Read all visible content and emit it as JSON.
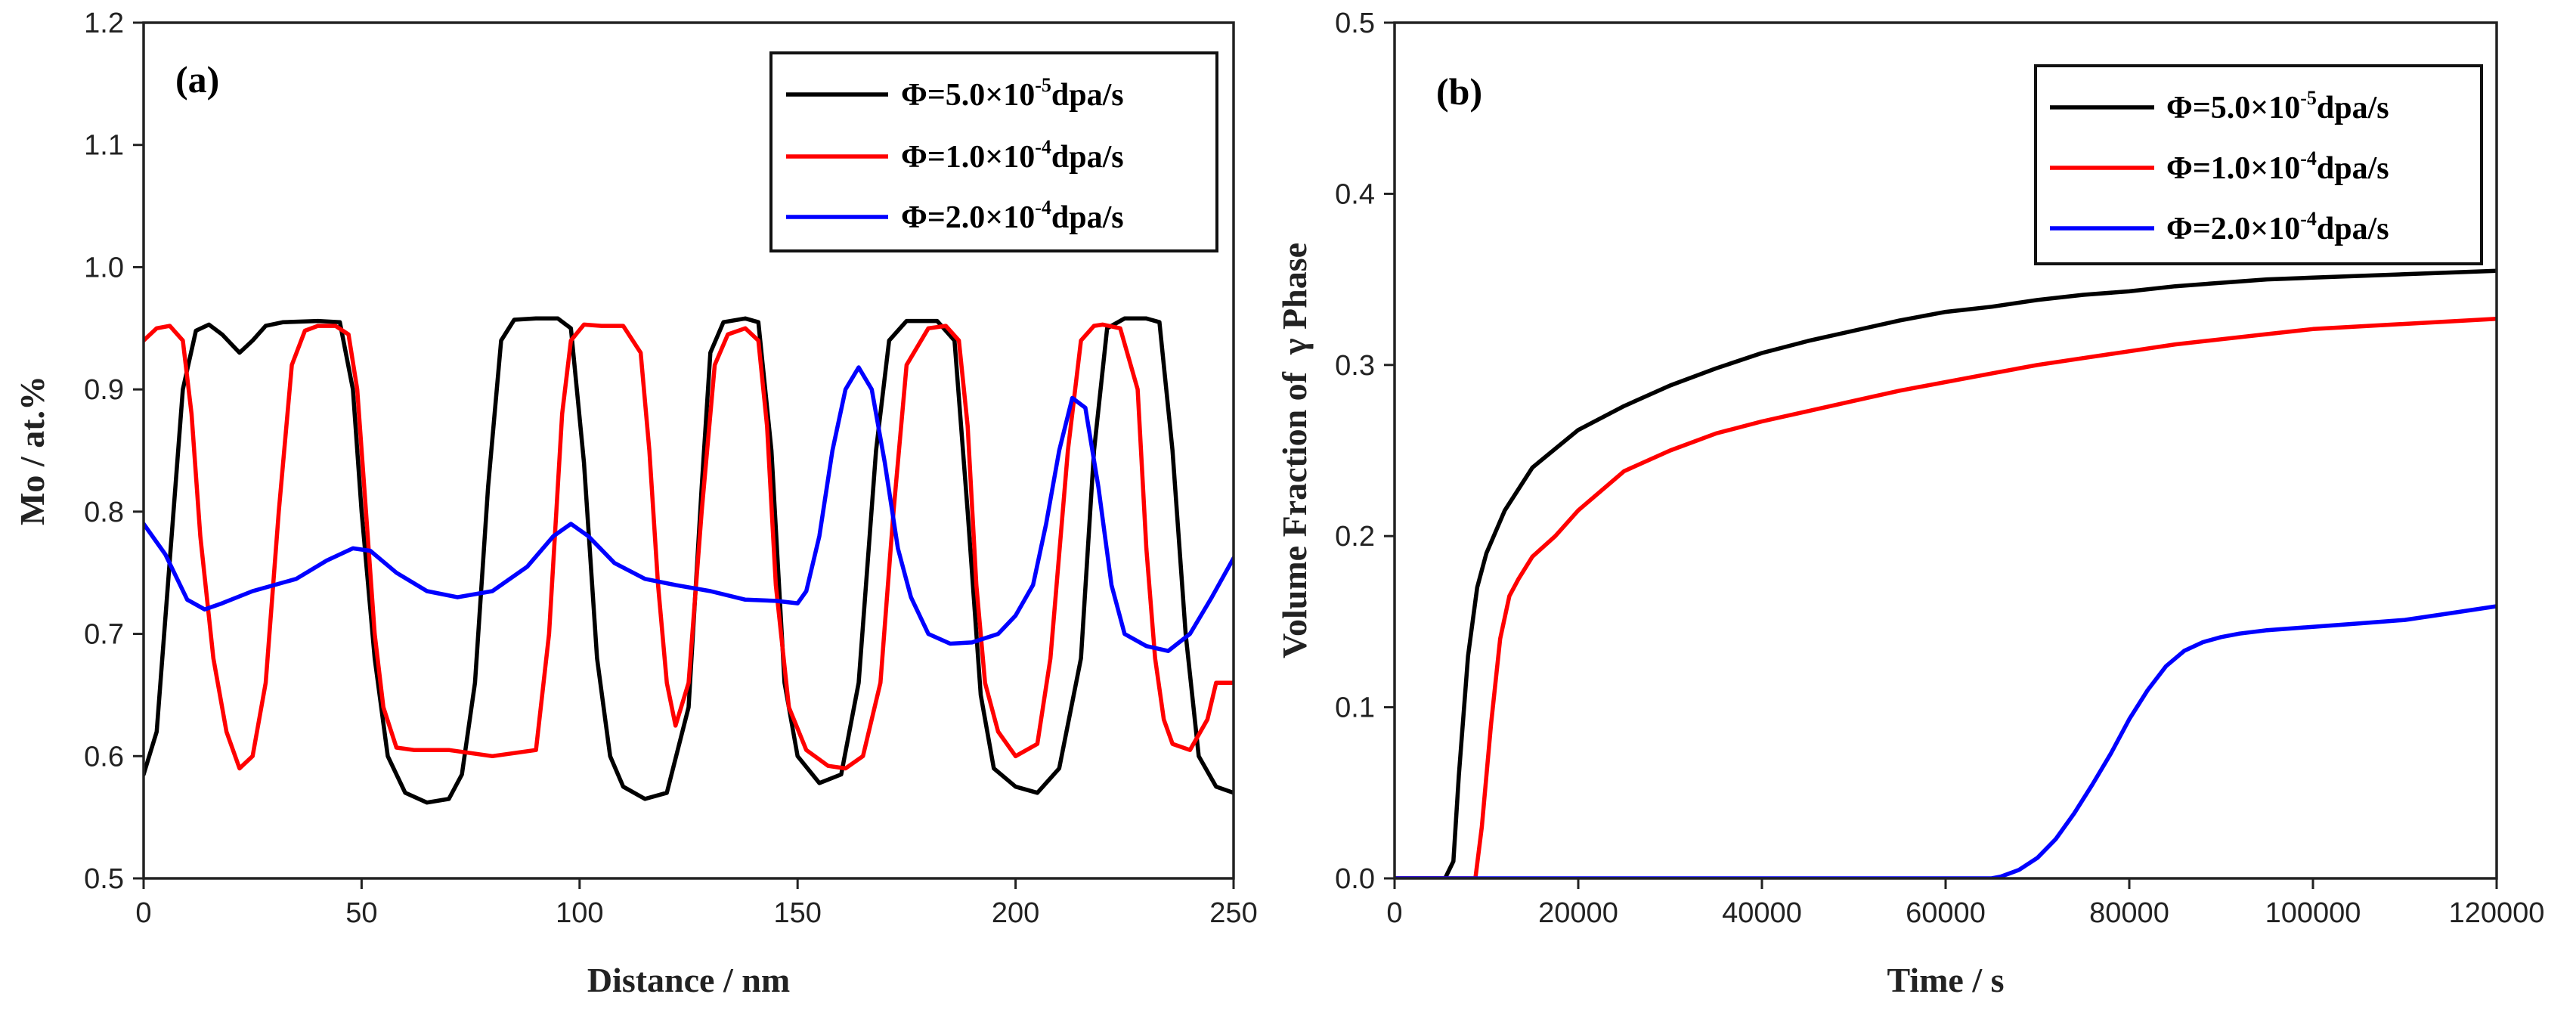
{
  "chart_data": [
    {
      "type": "line",
      "panel_label": "(a)",
      "xlabel": "Distance / nm",
      "ylabel": "Mo / at.%",
      "xlim": [
        0,
        250
      ],
      "ylim": [
        0.5,
        1.2
      ],
      "xticks": [
        0,
        50,
        100,
        150,
        200,
        250
      ],
      "yticks": [
        0.5,
        0.6,
        0.7,
        0.8,
        0.9,
        1.0,
        1.1,
        1.2
      ],
      "xtick_labels": [
        "0",
        "50",
        "100",
        "150",
        "200",
        "250"
      ],
      "ytick_labels": [
        "0.5",
        "0.6",
        "0.7",
        "0.8",
        "0.9",
        "1.0",
        "1.1",
        "1.2"
      ],
      "legend_position": "top-right",
      "series": [
        {
          "name": "Φ=5.0×10-5dpa/s",
          "legend": {
            "prefix": "Φ=5.0×10",
            "exp": "-5",
            "suffix": "dpa/s"
          },
          "color": "#000000",
          "x": [
            0,
            3,
            6,
            9,
            12,
            15,
            18,
            22,
            25,
            28,
            32,
            40,
            45,
            48,
            50,
            53,
            56,
            60,
            65,
            70,
            73,
            76,
            79,
            82,
            85,
            90,
            95,
            98,
            101,
            104,
            107,
            110,
            115,
            120,
            125,
            128,
            130,
            133,
            138,
            141,
            144,
            147,
            150,
            155,
            160,
            164,
            168,
            171,
            175,
            182,
            186,
            189,
            192,
            195,
            200,
            205,
            210,
            215,
            218,
            221,
            225,
            230,
            233,
            236,
            239,
            242,
            246,
            250
          ],
          "y": [
            0.585,
            0.62,
            0.76,
            0.9,
            0.948,
            0.953,
            0.945,
            0.93,
            0.94,
            0.952,
            0.955,
            0.956,
            0.955,
            0.9,
            0.8,
            0.68,
            0.6,
            0.57,
            0.562,
            0.565,
            0.585,
            0.66,
            0.82,
            0.94,
            0.957,
            0.958,
            0.958,
            0.95,
            0.84,
            0.68,
            0.6,
            0.575,
            0.565,
            0.57,
            0.64,
            0.82,
            0.93,
            0.955,
            0.958,
            0.955,
            0.85,
            0.66,
            0.6,
            0.578,
            0.585,
            0.66,
            0.85,
            0.94,
            0.956,
            0.956,
            0.94,
            0.8,
            0.65,
            0.59,
            0.575,
            0.57,
            0.59,
            0.68,
            0.85,
            0.95,
            0.958,
            0.958,
            0.955,
            0.85,
            0.7,
            0.6,
            0.575,
            0.57
          ]
        },
        {
          "name": "Φ=1.0×10-4dpa/s",
          "legend": {
            "prefix": "Φ=1.0×10",
            "exp": "-4",
            "suffix": "dpa/s"
          },
          "color": "#ff0000",
          "x": [
            0,
            3,
            6,
            9,
            11,
            13,
            16,
            19,
            22,
            25,
            28,
            31,
            34,
            37,
            40,
            44,
            47,
            49,
            51,
            53,
            55,
            58,
            62,
            70,
            80,
            90,
            93,
            96,
            98,
            101,
            105,
            110,
            114,
            116,
            118,
            120,
            122,
            125,
            128,
            131,
            134,
            138,
            141,
            143,
            145,
            148,
            152,
            157,
            161,
            165,
            169,
            172,
            175,
            180,
            184,
            187,
            189,
            191,
            193,
            196,
            200,
            205,
            208,
            212,
            215,
            218,
            220,
            224,
            228,
            230,
            232,
            234,
            236,
            240,
            244,
            246,
            248,
            250
          ],
          "y": [
            0.94,
            0.95,
            0.952,
            0.94,
            0.88,
            0.78,
            0.68,
            0.62,
            0.59,
            0.6,
            0.66,
            0.8,
            0.92,
            0.948,
            0.952,
            0.952,
            0.945,
            0.9,
            0.8,
            0.7,
            0.64,
            0.607,
            0.605,
            0.605,
            0.6,
            0.605,
            0.7,
            0.88,
            0.94,
            0.953,
            0.952,
            0.952,
            0.93,
            0.85,
            0.74,
            0.66,
            0.625,
            0.66,
            0.8,
            0.92,
            0.945,
            0.95,
            0.94,
            0.87,
            0.74,
            0.64,
            0.605,
            0.592,
            0.59,
            0.6,
            0.66,
            0.8,
            0.92,
            0.95,
            0.952,
            0.94,
            0.87,
            0.74,
            0.66,
            0.62,
            0.6,
            0.61,
            0.68,
            0.85,
            0.94,
            0.952,
            0.953,
            0.95,
            0.9,
            0.77,
            0.68,
            0.63,
            0.61,
            0.605,
            0.63,
            0.66,
            0.66,
            0.66
          ]
        },
        {
          "name": "Φ=2.0×10-4dpa/s",
          "legend": {
            "prefix": "Φ=2.0×10",
            "exp": "-4",
            "suffix": "dpa/s"
          },
          "color": "#0000ff",
          "x": [
            0,
            5,
            10,
            14,
            18,
            25,
            35,
            42,
            48,
            52,
            58,
            65,
            72,
            80,
            88,
            94,
            98,
            102,
            108,
            115,
            122,
            130,
            138,
            145,
            150,
            152,
            155,
            158,
            161,
            164,
            167,
            170,
            173,
            176,
            180,
            185,
            190,
            196,
            200,
            204,
            207,
            210,
            213,
            216,
            219,
            222,
            225,
            230,
            235,
            240,
            245,
            250
          ],
          "y": [
            0.79,
            0.765,
            0.728,
            0.72,
            0.725,
            0.735,
            0.745,
            0.76,
            0.77,
            0.768,
            0.75,
            0.735,
            0.73,
            0.735,
            0.755,
            0.78,
            0.79,
            0.78,
            0.758,
            0.745,
            0.74,
            0.735,
            0.728,
            0.727,
            0.725,
            0.735,
            0.78,
            0.85,
            0.9,
            0.918,
            0.9,
            0.84,
            0.77,
            0.73,
            0.7,
            0.692,
            0.693,
            0.7,
            0.715,
            0.74,
            0.79,
            0.85,
            0.893,
            0.885,
            0.82,
            0.74,
            0.7,
            0.69,
            0.686,
            0.7,
            0.73,
            0.762
          ]
        }
      ]
    },
    {
      "type": "line",
      "panel_label": "(b)",
      "xlabel": "Time / s",
      "ylabel": "Volume Fraction of  γ Phase",
      "xlim": [
        0,
        120000
      ],
      "ylim": [
        0,
        0.5
      ],
      "xticks": [
        0,
        20000,
        40000,
        60000,
        80000,
        100000,
        120000
      ],
      "yticks": [
        0.0,
        0.1,
        0.2,
        0.3,
        0.4,
        0.5
      ],
      "xtick_labels": [
        "0",
        "20000",
        "40000",
        "60000",
        "80000",
        "100000",
        "120000"
      ],
      "ytick_labels": [
        "0.0",
        "0.1",
        "0.2",
        "0.3",
        "0.4",
        "0.5"
      ],
      "legend_position": "top-right",
      "series": [
        {
          "name": "Φ=5.0×10-5dpa/s",
          "legend": {
            "prefix": "Φ=5.0×10",
            "exp": "-5",
            "suffix": "dpa/s"
          },
          "color": "#000000",
          "x": [
            0,
            5500,
            6400,
            7000,
            8000,
            9000,
            10000,
            12000,
            15000,
            20000,
            25000,
            30000,
            35000,
            40000,
            45000,
            50000,
            55000,
            60000,
            65000,
            70000,
            75000,
            80000,
            85000,
            90000,
            95000,
            100000,
            110000,
            120000
          ],
          "y": [
            0,
            0,
            0.01,
            0.06,
            0.13,
            0.17,
            0.19,
            0.215,
            0.24,
            0.262,
            0.276,
            0.288,
            0.298,
            0.307,
            0.314,
            0.32,
            0.326,
            0.331,
            0.334,
            0.338,
            0.341,
            0.343,
            0.346,
            0.348,
            0.35,
            0.351,
            0.353,
            0.355
          ]
        },
        {
          "name": "Φ=1.0×10-4dpa/s",
          "legend": {
            "prefix": "Φ=1.0×10",
            "exp": "-4",
            "suffix": "dpa/s"
          },
          "color": "#ff0000",
          "x": [
            0,
            8800,
            9500,
            10500,
            11500,
            12500,
            13500,
            15000,
            17500,
            20000,
            25000,
            30000,
            35000,
            40000,
            45000,
            50000,
            55000,
            60000,
            65000,
            70000,
            75000,
            80000,
            85000,
            90000,
            95000,
            100000,
            110000,
            120000
          ],
          "y": [
            0,
            0,
            0.03,
            0.09,
            0.14,
            0.165,
            0.175,
            0.188,
            0.2,
            0.215,
            0.238,
            0.25,
            0.26,
            0.267,
            0.273,
            0.279,
            0.285,
            0.29,
            0.295,
            0.3,
            0.304,
            0.308,
            0.312,
            0.315,
            0.318,
            0.321,
            0.324,
            0.327
          ]
        },
        {
          "name": "Φ=2.0×10-4dpa/s",
          "legend": {
            "prefix": "Φ=2.0×10",
            "exp": "-4",
            "suffix": "dpa/s"
          },
          "color": "#0000ff",
          "x": [
            0,
            65000,
            66000,
            68000,
            70000,
            72000,
            74000,
            76000,
            78000,
            80000,
            82000,
            84000,
            86000,
            88000,
            90000,
            92000,
            95000,
            100000,
            105000,
            110000,
            115000,
            120000
          ],
          "y": [
            0,
            0,
            0.001,
            0.005,
            0.012,
            0.023,
            0.038,
            0.055,
            0.073,
            0.093,
            0.11,
            0.124,
            0.133,
            0.138,
            0.141,
            0.143,
            0.145,
            0.147,
            0.149,
            0.151,
            0.155,
            0.159
          ]
        }
      ]
    }
  ]
}
